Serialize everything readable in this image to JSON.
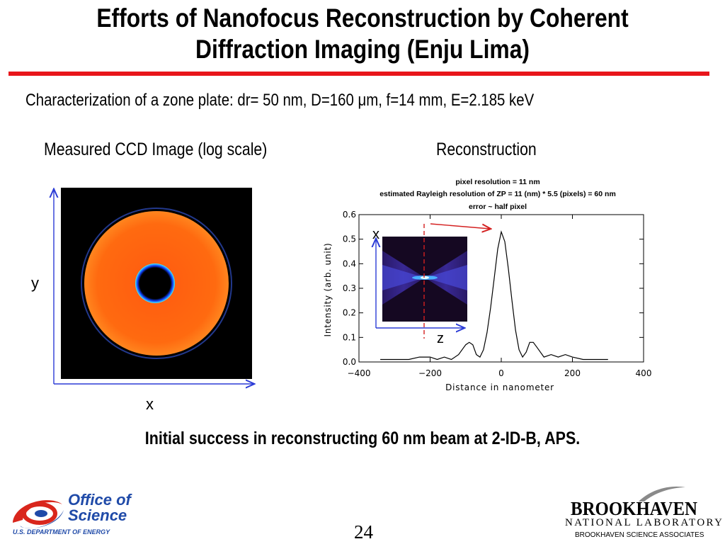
{
  "slide": {
    "title_line1": "Efforts of Nanofocus Reconstruction by Coherent",
    "title_line2": "Diffraction Imaging (Enju Lima)",
    "subtitle": "Characterization of a zone plate: dr= 50 nm, D=160 μm, f=14 mm, E=2.185 keV",
    "conclusion": "Initial success in reconstructing 60 nm beam at 2-ID-B, APS.",
    "page_number": "24"
  },
  "ccd_panel": {
    "caption": "Measured CCD Image (log scale)",
    "x_label": "x",
    "y_label": "y"
  },
  "recon_panel": {
    "caption": "Reconstruction",
    "annotation_lines": [
      "pixel resolution = 11 nm",
      "estimated Rayleigh resolution of ZP = 11 (nm) * 5.5 (pixels) = 60 nm",
      "error ~ half pixel"
    ],
    "inset_x_label": "x",
    "inset_z_label": "z"
  },
  "chart_data": {
    "type": "line",
    "title": "",
    "xlabel": "Distance in nanometer",
    "ylabel": "Intensity (arb. unit)",
    "xlim": [
      -400,
      400
    ],
    "ylim": [
      0.0,
      0.6
    ],
    "xticks": [
      -400,
      -200,
      0,
      200,
      400
    ],
    "yticks": [
      0.0,
      0.1,
      0.2,
      0.3,
      0.4,
      0.5,
      0.6
    ],
    "xtick_labels": [
      "−400",
      "−200",
      "0",
      "200",
      "400"
    ],
    "ytick_labels": [
      "0.0",
      "0.1",
      "0.2",
      "0.3",
      "0.4",
      "0.5",
      "0.6"
    ],
    "x": [
      -340,
      -300,
      -260,
      -230,
      -200,
      -180,
      -160,
      -140,
      -120,
      -100,
      -90,
      -80,
      -70,
      -60,
      -50,
      -40,
      -30,
      -20,
      -10,
      0,
      10,
      20,
      30,
      40,
      50,
      60,
      70,
      80,
      90,
      100,
      120,
      140,
      160,
      180,
      200,
      230,
      260,
      300
    ],
    "y": [
      0.01,
      0.01,
      0.01,
      0.02,
      0.02,
      0.01,
      0.02,
      0.01,
      0.03,
      0.07,
      0.08,
      0.07,
      0.03,
      0.02,
      0.05,
      0.12,
      0.22,
      0.34,
      0.46,
      0.53,
      0.49,
      0.38,
      0.25,
      0.13,
      0.05,
      0.02,
      0.04,
      0.08,
      0.08,
      0.06,
      0.02,
      0.03,
      0.02,
      0.03,
      0.02,
      0.01,
      0.01,
      0.01
    ]
  },
  "colors": {
    "title_rule": "#e8161b",
    "axis_blue": "#2b3bd6",
    "annotation_arrow": "#d42020"
  },
  "logos": {
    "office_line1": "Office of",
    "office_line2": "Science",
    "doe": "U.S. DEPARTMENT OF ENERGY",
    "bnl_name": "BROOKHAVEN",
    "bnl_lab": "NATIONAL LABORATORY",
    "bnl_assoc": "BROOKHAVEN SCIENCE ASSOCIATES"
  }
}
